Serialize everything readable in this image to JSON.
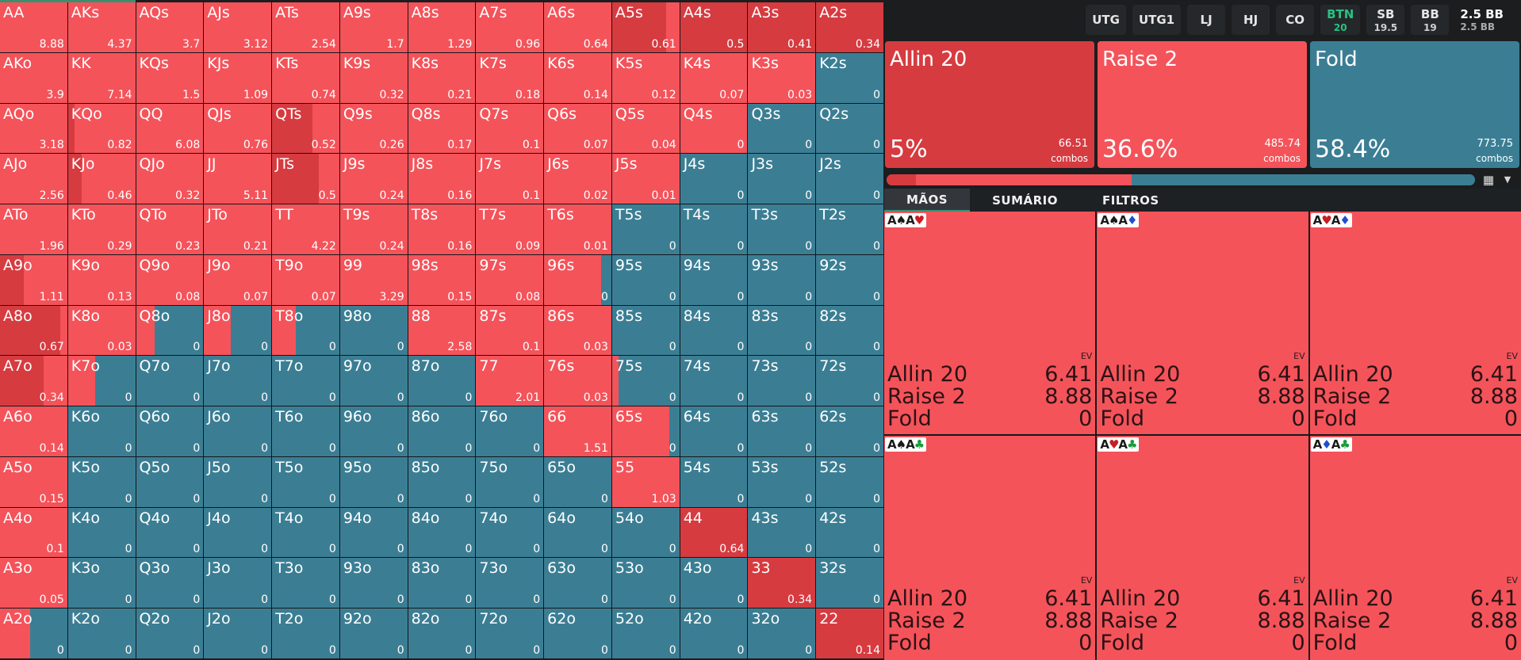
{
  "colors": {
    "allin": "#d63b40",
    "raise": "#f4535a",
    "fold": "#3b7e94",
    "accent": "#27c281"
  },
  "matrix": [
    [
      [
        "AA",
        "8.88",
        0,
        100
      ],
      [
        "AKs",
        "4.37",
        0,
        100
      ],
      [
        "AQs",
        "3.7",
        0,
        100
      ],
      [
        "AJs",
        "3.12",
        0,
        100
      ],
      [
        "ATs",
        "2.54",
        0,
        100
      ],
      [
        "A9s",
        "1.7",
        0,
        100
      ],
      [
        "A8s",
        "1.29",
        0,
        100
      ],
      [
        "A7s",
        "0.96",
        0,
        100
      ],
      [
        "A6s",
        "0.64",
        0,
        100
      ],
      [
        "A5s",
        "0.61",
        80,
        20
      ],
      [
        "A4s",
        "0.5",
        100,
        0
      ],
      [
        "A3s",
        "0.41",
        100,
        0
      ],
      [
        "A2s",
        "0.34",
        100,
        0
      ]
    ],
    [
      [
        "AKo",
        "3.9",
        0,
        100
      ],
      [
        "KK",
        "7.14",
        0,
        100
      ],
      [
        "KQs",
        "1.5",
        0,
        100
      ],
      [
        "KJs",
        "1.09",
        0,
        100
      ],
      [
        "KTs",
        "0.74",
        0,
        100
      ],
      [
        "K9s",
        "0.32",
        0,
        100
      ],
      [
        "K8s",
        "0.21",
        0,
        100
      ],
      [
        "K7s",
        "0.18",
        0,
        100
      ],
      [
        "K6s",
        "0.14",
        0,
        100
      ],
      [
        "K5s",
        "0.12",
        0,
        100
      ],
      [
        "K4s",
        "0.07",
        0,
        100
      ],
      [
        "K3s",
        "0.03",
        0,
        100
      ],
      [
        "K2s",
        "0",
        0,
        0
      ]
    ],
    [
      [
        "AQo",
        "3.18",
        0,
        100
      ],
      [
        "KQo",
        "0.82",
        10,
        90
      ],
      [
        "QQ",
        "6.08",
        0,
        100
      ],
      [
        "QJs",
        "0.76",
        0,
        100
      ],
      [
        "QTs",
        "0.52",
        60,
        40
      ],
      [
        "Q9s",
        "0.26",
        0,
        100
      ],
      [
        "Q8s",
        "0.17",
        0,
        100
      ],
      [
        "Q7s",
        "0.1",
        0,
        100
      ],
      [
        "Q6s",
        "0.07",
        0,
        100
      ],
      [
        "Q5s",
        "0.04",
        0,
        100
      ],
      [
        "Q4s",
        "0",
        0,
        100
      ],
      [
        "Q3s",
        "0",
        0,
        0
      ],
      [
        "Q2s",
        "0",
        0,
        0
      ]
    ],
    [
      [
        "AJo",
        "2.56",
        0,
        100
      ],
      [
        "KJo",
        "0.46",
        20,
        80
      ],
      [
        "QJo",
        "0.32",
        0,
        100
      ],
      [
        "JJ",
        "5.11",
        0,
        100
      ],
      [
        "JTs",
        "0.5",
        70,
        30
      ],
      [
        "J9s",
        "0.24",
        0,
        100
      ],
      [
        "J8s",
        "0.16",
        0,
        100
      ],
      [
        "J7s",
        "0.1",
        0,
        100
      ],
      [
        "J6s",
        "0.02",
        0,
        100
      ],
      [
        "J5s",
        "0.01",
        0,
        100
      ],
      [
        "J4s",
        "0",
        0,
        0
      ],
      [
        "J3s",
        "0",
        0,
        0
      ],
      [
        "J2s",
        "0",
        0,
        0
      ]
    ],
    [
      [
        "ATo",
        "1.96",
        0,
        100
      ],
      [
        "KTo",
        "0.29",
        0,
        100
      ],
      [
        "QTo",
        "0.23",
        0,
        100
      ],
      [
        "JTo",
        "0.21",
        0,
        100
      ],
      [
        "TT",
        "4.22",
        0,
        100
      ],
      [
        "T9s",
        "0.24",
        0,
        100
      ],
      [
        "T8s",
        "0.16",
        0,
        100
      ],
      [
        "T7s",
        "0.09",
        0,
        100
      ],
      [
        "T6s",
        "0.01",
        0,
        100
      ],
      [
        "T5s",
        "0",
        0,
        0
      ],
      [
        "T4s",
        "0",
        0,
        0
      ],
      [
        "T3s",
        "0",
        0,
        0
      ],
      [
        "T2s",
        "0",
        0,
        0
      ]
    ],
    [
      [
        "A9o",
        "1.11",
        35,
        65
      ],
      [
        "K9o",
        "0.13",
        0,
        100
      ],
      [
        "Q9o",
        "0.08",
        0,
        100
      ],
      [
        "J9o",
        "0.07",
        0,
        100
      ],
      [
        "T9o",
        "0.07",
        0,
        100
      ],
      [
        "99",
        "3.29",
        0,
        100
      ],
      [
        "98s",
        "0.15",
        0,
        100
      ],
      [
        "97s",
        "0.08",
        0,
        100
      ],
      [
        "96s",
        "0",
        0,
        85
      ],
      [
        "95s",
        "0",
        0,
        0
      ],
      [
        "94s",
        "0",
        0,
        0
      ],
      [
        "93s",
        "0",
        0,
        0
      ],
      [
        "92s",
        "0",
        0,
        0
      ]
    ],
    [
      [
        "A8o",
        "0.67",
        90,
        10
      ],
      [
        "K8o",
        "0.03",
        0,
        100
      ],
      [
        "Q8o",
        "0",
        0,
        28
      ],
      [
        "J8o",
        "0",
        0,
        40
      ],
      [
        "T8o",
        "0",
        0,
        35
      ],
      [
        "98o",
        "0",
        0,
        0
      ],
      [
        "88",
        "2.58",
        0,
        100
      ],
      [
        "87s",
        "0.1",
        0,
        100
      ],
      [
        "86s",
        "0.03",
        0,
        100
      ],
      [
        "85s",
        "0",
        0,
        0
      ],
      [
        "84s",
        "0",
        0,
        0
      ],
      [
        "83s",
        "0",
        0,
        0
      ],
      [
        "82s",
        "0",
        0,
        0
      ]
    ],
    [
      [
        "A7o",
        "0.34",
        65,
        35
      ],
      [
        "K7o",
        "0",
        0,
        40
      ],
      [
        "Q7o",
        "0",
        0,
        0
      ],
      [
        "J7o",
        "0",
        0,
        0
      ],
      [
        "T7o",
        "0",
        0,
        0
      ],
      [
        "97o",
        "0",
        0,
        0
      ],
      [
        "87o",
        "0",
        0,
        0
      ],
      [
        "77",
        "2.01",
        0,
        100
      ],
      [
        "76s",
        "0.03",
        0,
        100
      ],
      [
        "75s",
        "0",
        0,
        10
      ],
      [
        "74s",
        "0",
        0,
        0
      ],
      [
        "73s",
        "0",
        0,
        0
      ],
      [
        "72s",
        "0",
        0,
        0
      ]
    ],
    [
      [
        "A6o",
        "0.14",
        0,
        100
      ],
      [
        "K6o",
        "0",
        0,
        0
      ],
      [
        "Q6o",
        "0",
        0,
        0
      ],
      [
        "J6o",
        "0",
        0,
        0
      ],
      [
        "T6o",
        "0",
        0,
        0
      ],
      [
        "96o",
        "0",
        0,
        0
      ],
      [
        "86o",
        "0",
        0,
        0
      ],
      [
        "76o",
        "0",
        0,
        0
      ],
      [
        "66",
        "1.51",
        0,
        100
      ],
      [
        "65s",
        "0",
        0,
        85
      ],
      [
        "64s",
        "0",
        0,
        0
      ],
      [
        "63s",
        "0",
        0,
        0
      ],
      [
        "62s",
        "0",
        0,
        0
      ]
    ],
    [
      [
        "A5o",
        "0.15",
        0,
        100
      ],
      [
        "K5o",
        "0",
        0,
        0
      ],
      [
        "Q5o",
        "0",
        0,
        0
      ],
      [
        "J5o",
        "0",
        0,
        0
      ],
      [
        "T5o",
        "0",
        0,
        0
      ],
      [
        "95o",
        "0",
        0,
        0
      ],
      [
        "85o",
        "0",
        0,
        0
      ],
      [
        "75o",
        "0",
        0,
        0
      ],
      [
        "65o",
        "0",
        0,
        0
      ],
      [
        "55",
        "1.03",
        0,
        100
      ],
      [
        "54s",
        "0",
        0,
        0
      ],
      [
        "53s",
        "0",
        0,
        0
      ],
      [
        "52s",
        "0",
        0,
        0
      ]
    ],
    [
      [
        "A4o",
        "0.1",
        0,
        100
      ],
      [
        "K4o",
        "0",
        0,
        0
      ],
      [
        "Q4o",
        "0",
        0,
        0
      ],
      [
        "J4o",
        "0",
        0,
        0
      ],
      [
        "T4o",
        "0",
        0,
        0
      ],
      [
        "94o",
        "0",
        0,
        0
      ],
      [
        "84o",
        "0",
        0,
        0
      ],
      [
        "74o",
        "0",
        0,
        0
      ],
      [
        "64o",
        "0",
        0,
        0
      ],
      [
        "54o",
        "0",
        0,
        0
      ],
      [
        "44",
        "0.64",
        100,
        0
      ],
      [
        "43s",
        "0",
        0,
        0
      ],
      [
        "42s",
        "0",
        0,
        0
      ]
    ],
    [
      [
        "A3o",
        "0.05",
        0,
        100
      ],
      [
        "K3o",
        "0",
        0,
        0
      ],
      [
        "Q3o",
        "0",
        0,
        0
      ],
      [
        "J3o",
        "0",
        0,
        0
      ],
      [
        "T3o",
        "0",
        0,
        0
      ],
      [
        "93o",
        "0",
        0,
        0
      ],
      [
        "83o",
        "0",
        0,
        0
      ],
      [
        "73o",
        "0",
        0,
        0
      ],
      [
        "63o",
        "0",
        0,
        0
      ],
      [
        "53o",
        "0",
        0,
        0
      ],
      [
        "43o",
        "0",
        0,
        0
      ],
      [
        "33",
        "0.34",
        100,
        0
      ],
      [
        "32s",
        "0",
        0,
        0
      ]
    ],
    [
      [
        "A2o",
        "0",
        0,
        45
      ],
      [
        "K2o",
        "0",
        0,
        0
      ],
      [
        "Q2o",
        "0",
        0,
        0
      ],
      [
        "J2o",
        "0",
        0,
        0
      ],
      [
        "T2o",
        "0",
        0,
        0
      ],
      [
        "92o",
        "0",
        0,
        0
      ],
      [
        "82o",
        "0",
        0,
        0
      ],
      [
        "72o",
        "0",
        0,
        0
      ],
      [
        "62o",
        "0",
        0,
        0
      ],
      [
        "52o",
        "0",
        0,
        0
      ],
      [
        "42o",
        "0",
        0,
        0
      ],
      [
        "32o",
        "0",
        0,
        0
      ],
      [
        "22",
        "0.14",
        100,
        0
      ]
    ]
  ],
  "positions": [
    {
      "name": "UTG",
      "sub": "",
      "active": false
    },
    {
      "name": "UTG1",
      "sub": "",
      "active": false
    },
    {
      "name": "LJ",
      "sub": "",
      "active": false
    },
    {
      "name": "HJ",
      "sub": "",
      "active": false
    },
    {
      "name": "CO",
      "sub": "",
      "active": false
    },
    {
      "name": "BTN",
      "sub": "20",
      "active": true
    },
    {
      "name": "SB",
      "sub": "19.5",
      "active": false
    },
    {
      "name": "BB",
      "sub": "19",
      "active": false
    }
  ],
  "pot": {
    "main": "2.5 BB",
    "sub": "2.5 BB"
  },
  "actions": [
    {
      "title": "Allin 20",
      "pct": "5%",
      "combos": "66.51",
      "combos_label": "combos",
      "color": "#d63b40"
    },
    {
      "title": "Raise 2",
      "pct": "36.6%",
      "combos": "485.74",
      "combos_label": "combos",
      "color": "#f4535a"
    },
    {
      "title": "Fold",
      "pct": "58.4%",
      "combos": "773.75",
      "combos_label": "combos",
      "color": "#3b7e94"
    }
  ],
  "distribution": {
    "allin": 5,
    "raise": 36.6,
    "fold": 58.4
  },
  "icons": {
    "grid": "grid-icon",
    "chevron": "chevron-down-icon"
  },
  "tabs": [
    {
      "label": "MÃOS",
      "active": true
    },
    {
      "label": "SUMÁRIO",
      "active": false
    },
    {
      "label": "FILTROS",
      "active": false
    }
  ],
  "combos": [
    {
      "cards": [
        [
          "A",
          "♠",
          "#1a1a1a"
        ],
        [
          "A",
          "♥",
          "#c81d25"
        ]
      ],
      "ev_label": "EV",
      "rows": [
        [
          "Allin 20",
          "6.41"
        ],
        [
          "Raise 2",
          "8.88"
        ],
        [
          "Fold",
          "0"
        ]
      ]
    },
    {
      "cards": [
        [
          "A",
          "♠",
          "#1a1a1a"
        ],
        [
          "A",
          "♦",
          "#1f4fd1"
        ]
      ],
      "ev_label": "EV",
      "rows": [
        [
          "Allin 20",
          "6.41"
        ],
        [
          "Raise 2",
          "8.88"
        ],
        [
          "Fold",
          "0"
        ]
      ]
    },
    {
      "cards": [
        [
          "A",
          "♥",
          "#c81d25"
        ],
        [
          "A",
          "♦",
          "#1f4fd1"
        ]
      ],
      "ev_label": "EV",
      "rows": [
        [
          "Allin 20",
          "6.41"
        ],
        [
          "Raise 2",
          "8.88"
        ],
        [
          "Fold",
          "0"
        ]
      ]
    },
    {
      "cards": [
        [
          "A",
          "♠",
          "#1a1a1a"
        ],
        [
          "A",
          "♣",
          "#1a9c3b"
        ]
      ],
      "ev_label": "EV",
      "rows": [
        [
          "Allin 20",
          "6.41"
        ],
        [
          "Raise 2",
          "8.88"
        ],
        [
          "Fold",
          "0"
        ]
      ]
    },
    {
      "cards": [
        [
          "A",
          "♥",
          "#c81d25"
        ],
        [
          "A",
          "♣",
          "#1a9c3b"
        ]
      ],
      "ev_label": "EV",
      "rows": [
        [
          "Allin 20",
          "6.41"
        ],
        [
          "Raise 2",
          "8.88"
        ],
        [
          "Fold",
          "0"
        ]
      ]
    },
    {
      "cards": [
        [
          "A",
          "♦",
          "#1f4fd1"
        ],
        [
          "A",
          "♣",
          "#1a9c3b"
        ]
      ],
      "ev_label": "EV",
      "rows": [
        [
          "Allin 20",
          "6.41"
        ],
        [
          "Raise 2",
          "8.88"
        ],
        [
          "Fold",
          "0"
        ]
      ]
    }
  ]
}
